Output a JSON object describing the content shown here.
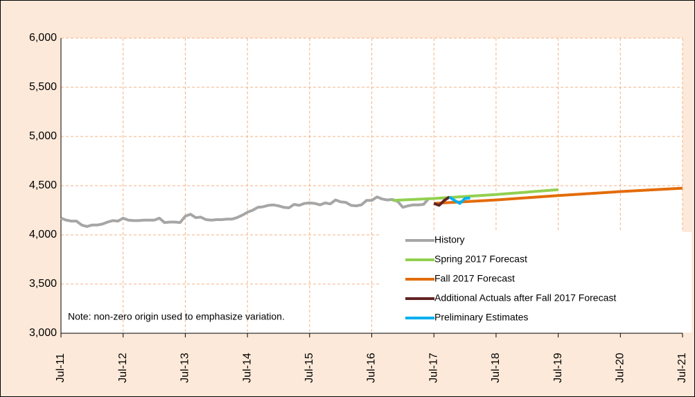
{
  "chart_data": {
    "type": "line",
    "note": "Note: non-zero origin used to emphasize variation.",
    "ylim": [
      3000,
      6000
    ],
    "yticks": [
      {
        "value": 3000,
        "label": "3,000"
      },
      {
        "value": 3500,
        "label": "3,500"
      },
      {
        "value": 4000,
        "label": "4,000"
      },
      {
        "value": 4500,
        "label": "4,500"
      },
      {
        "value": 5000,
        "label": "5,000"
      },
      {
        "value": 5500,
        "label": "5,500"
      },
      {
        "value": 6000,
        "label": "6,000"
      }
    ],
    "xlim": [
      "Jul-11",
      "Jul-21"
    ],
    "xticks": [
      "Jul-11",
      "Jul-12",
      "Jul-13",
      "Jul-14",
      "Jul-15",
      "Jul-16",
      "Jul-17",
      "Jul-18",
      "Jul-19",
      "Jul-20",
      "Jul-21"
    ],
    "grid": true,
    "series": [
      {
        "name": "History",
        "color": "#a6a6a6",
        "x": [
          "Jul-11",
          "Aug-11",
          "Sep-11",
          "Oct-11",
          "Nov-11",
          "Dec-11",
          "Jan-12",
          "Feb-12",
          "Mar-12",
          "Apr-12",
          "May-12",
          "Jun-12",
          "Jul-12",
          "Aug-12",
          "Sep-12",
          "Oct-12",
          "Nov-12",
          "Dec-12",
          "Jan-13",
          "Feb-13",
          "Mar-13",
          "Apr-13",
          "May-13",
          "Jun-13",
          "Jul-13",
          "Aug-13",
          "Sep-13",
          "Oct-13",
          "Nov-13",
          "Dec-13",
          "Jan-14",
          "Feb-14",
          "Mar-14",
          "Apr-14",
          "May-14",
          "Jun-14",
          "Jul-14",
          "Aug-14",
          "Sep-14",
          "Oct-14",
          "Nov-14",
          "Dec-14",
          "Jan-15",
          "Feb-15",
          "Mar-15",
          "Apr-15",
          "May-15",
          "Jun-15",
          "Jul-15",
          "Aug-15",
          "Sep-15",
          "Oct-15",
          "Nov-15",
          "Dec-15",
          "Jan-16",
          "Feb-16",
          "Mar-16",
          "Apr-16",
          "May-16",
          "Jun-16",
          "Jul-16",
          "Aug-16",
          "Sep-16",
          "Oct-16",
          "Nov-16",
          "Dec-16",
          "Jan-17",
          "Feb-17",
          "Mar-17",
          "Apr-17",
          "May-17",
          "Jun-17"
        ],
        "values": [
          4170,
          4150,
          4140,
          4140,
          4100,
          4085,
          4100,
          4100,
          4110,
          4130,
          4145,
          4140,
          4170,
          4150,
          4145,
          4145,
          4150,
          4150,
          4150,
          4170,
          4125,
          4130,
          4130,
          4125,
          4190,
          4210,
          4175,
          4180,
          4155,
          4150,
          4155,
          4155,
          4160,
          4160,
          4175,
          4200,
          4230,
          4250,
          4280,
          4285,
          4300,
          4305,
          4295,
          4280,
          4275,
          4310,
          4300,
          4320,
          4325,
          4320,
          4305,
          4325,
          4315,
          4355,
          4335,
          4330,
          4300,
          4295,
          4305,
          4350,
          4350,
          4385,
          4365,
          4355,
          4360,
          4340,
          4280,
          4295,
          4305,
          4305,
          4310,
          4370
        ]
      },
      {
        "name": "Spring 2017 Forecast",
        "color": "#92d050",
        "x": [
          "Nov-16",
          "Jul-17",
          "Jul-18",
          "Jul-19"
        ],
        "values": [
          4350,
          4370,
          4410,
          4460
        ]
      },
      {
        "name": "Fall 2017 Forecast",
        "color": "#e36c09",
        "x": [
          "Jul-17",
          "Jul-18",
          "Jul-19",
          "Jul-20",
          "Jul-21"
        ],
        "values": [
          4320,
          4355,
          4400,
          4440,
          4475
        ]
      },
      {
        "name": "Additional Actuals after Fall 2017 Forecast",
        "color": "#632423",
        "x": [
          "Jul-17",
          "Aug-17",
          "Sep-17",
          "Oct-17"
        ],
        "values": [
          4320,
          4300,
          4350,
          4385
        ]
      },
      {
        "name": "Preliminary Estimates",
        "color": "#00b0f0",
        "x": [
          "Oct-17",
          "Nov-17",
          "Dec-17",
          "Jan-18",
          "Feb-18"
        ],
        "values": [
          4385,
          4350,
          4320,
          4370,
          4375
        ]
      }
    ]
  }
}
